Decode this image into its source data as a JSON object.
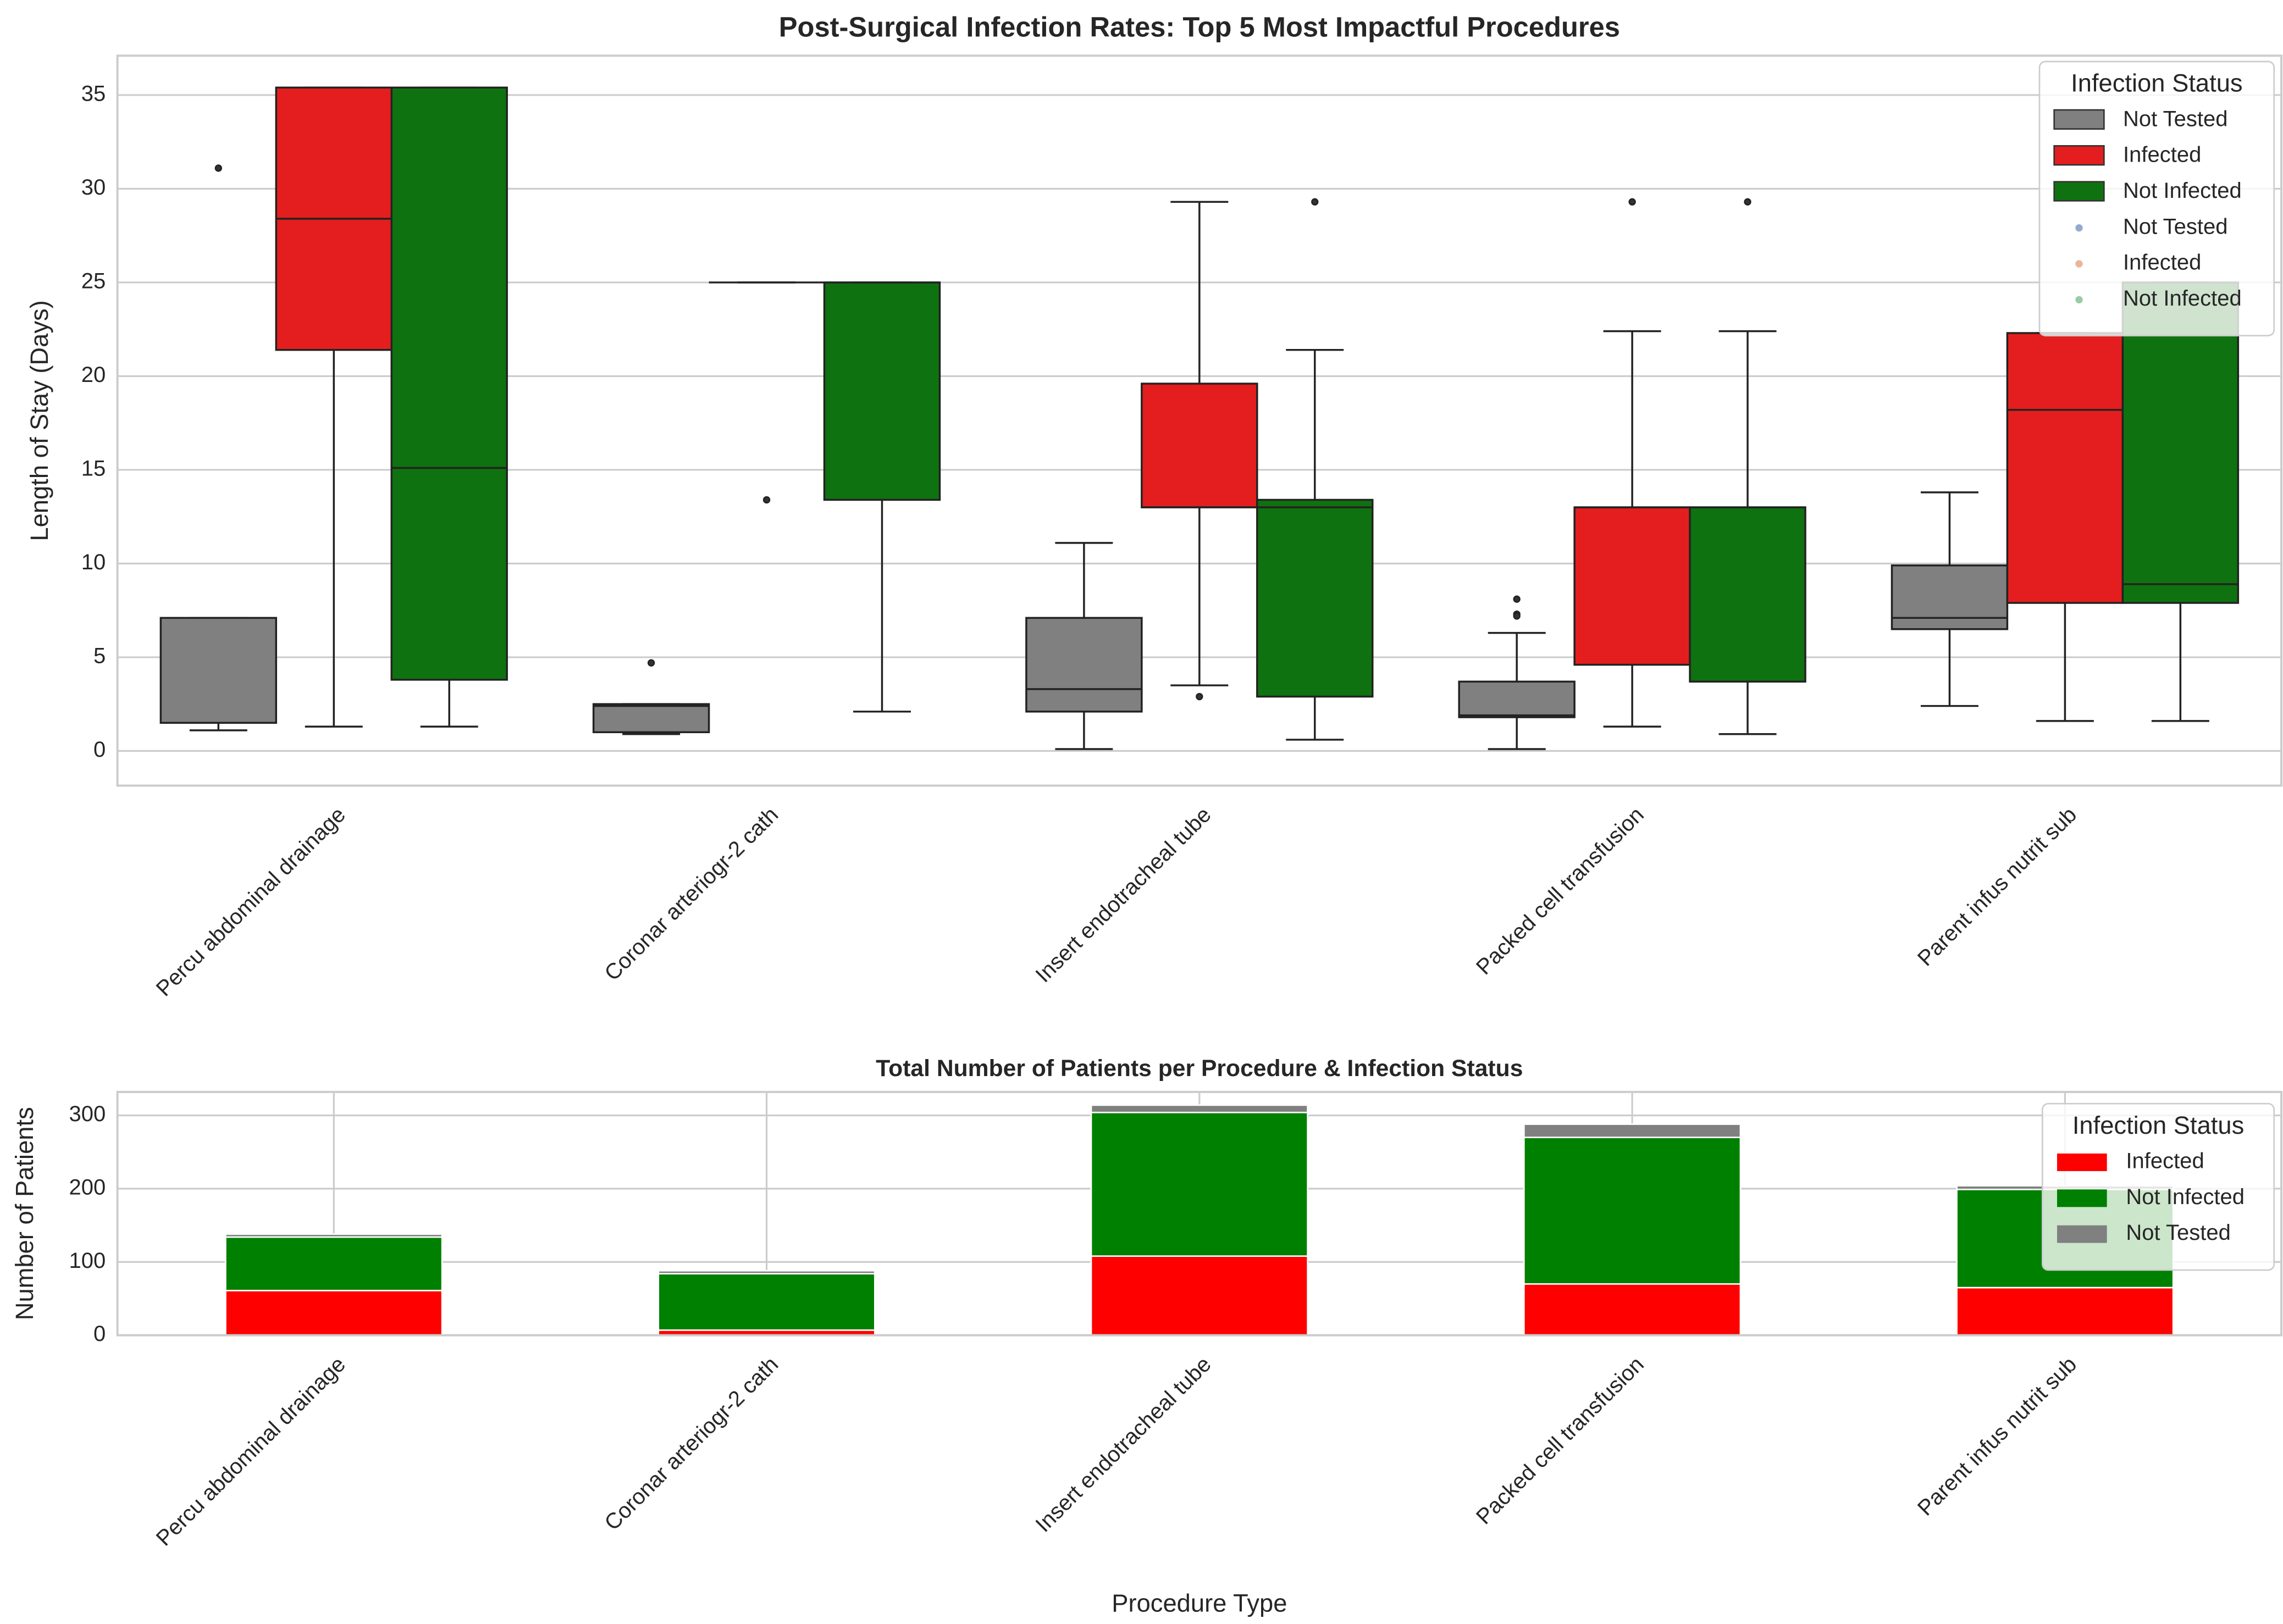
{
  "chart_data": [
    {
      "type": "box",
      "title": "Post-Surgical Infection Rates: Top 5 Most Impactful Procedures",
      "ylabel": "Length of Stay (Days)",
      "categories": [
        "Percu abdominal drainage",
        "Coronar arteriogr-2 cath",
        "Insert endotracheal tube",
        "Packed cell transfusion",
        "Parent infus nutrit sub"
      ],
      "ylim": [
        -1.85,
        37.1
      ],
      "yticks": [
        0,
        5,
        10,
        15,
        20,
        25,
        30,
        35
      ],
      "grid": true,
      "legend": {
        "title": "Infection Status",
        "loc": "upper right"
      },
      "series": [
        {
          "name": "Not Tested",
          "color": "#808080",
          "boxes": [
            [
              1.1,
              1.5,
              1.5,
              7.1,
              7.1
            ],
            [
              0.9,
              1.0,
              2.4,
              2.5,
              2.5
            ],
            [
              0.1,
              2.1,
              3.3,
              7.1,
              11.1
            ],
            [
              0.1,
              1.8,
              1.9,
              3.7,
              6.3
            ],
            [
              2.4,
              6.5,
              7.1,
              9.9,
              13.8
            ]
          ],
          "outliers": [
            [
              31.1
            ],
            [
              4.7
            ],
            [],
            [
              8.1,
              7.3,
              7.2
            ],
            []
          ]
        },
        {
          "name": "Infected",
          "color": "#e41e1e",
          "boxes": [
            [
              1.3,
              21.4,
              28.4,
              35.4,
              35.4
            ],
            [
              25,
              25,
              25,
              25,
              25
            ],
            [
              3.5,
              13.0,
              13.0,
              19.6,
              29.3
            ],
            [
              1.3,
              4.6,
              13.0,
              13.0,
              22.4
            ],
            [
              1.6,
              7.9,
              18.2,
              22.3,
              22.3
            ]
          ],
          "outliers": [
            [],
            [
              13.4
            ],
            [
              2.9
            ],
            [
              29.3
            ],
            []
          ]
        },
        {
          "name": "Not Infected",
          "color": "#0f7210",
          "boxes": [
            [
              1.3,
              3.8,
              15.1,
              35.4,
              35.4
            ],
            [
              2.1,
              13.4,
              25,
              25,
              25
            ],
            [
              0.6,
              2.9,
              13.0,
              13.4,
              21.4
            ],
            [
              0.9,
              3.7,
              13.0,
              13.0,
              22.4
            ],
            [
              1.6,
              7.9,
              8.9,
              25,
              25
            ]
          ],
          "outliers": [
            [],
            [],
            [
              29.3
            ],
            [
              29.3
            ],
            []
          ]
        }
      ],
      "point_legend": [
        {
          "name": "Not Tested",
          "color": "#4c72b0"
        },
        {
          "name": "Infected",
          "color": "#dd8452"
        },
        {
          "name": "Not Infected",
          "color": "#55a868"
        }
      ]
    },
    {
      "type": "stacked_bar",
      "title": "Total Number of Patients per Procedure & Infection Status",
      "xlabel": "Procedure Type",
      "ylabel": "Number of Patients",
      "categories": [
        "Percu abdominal drainage",
        "Coronar arteriogr-2 cath",
        "Insert endotracheal tube",
        "Packed cell transfusion",
        "Parent infus nutrit sub"
      ],
      "ylim": [
        0,
        332
      ],
      "yticks": [
        0,
        100,
        200,
        300
      ],
      "grid": true,
      "legend": {
        "title": "Infection Status",
        "loc": "upper right"
      },
      "series": [
        {
          "name": "Infected",
          "color": "#ff0000",
          "values": [
            61,
            7,
            108,
            70,
            65
          ]
        },
        {
          "name": "Not Infected",
          "color": "#008000",
          "values": [
            73,
            77,
            196,
            200,
            134
          ]
        },
        {
          "name": "Not Tested",
          "color": "#808080",
          "values": [
            4,
            4,
            10,
            18,
            5
          ]
        }
      ]
    }
  ]
}
